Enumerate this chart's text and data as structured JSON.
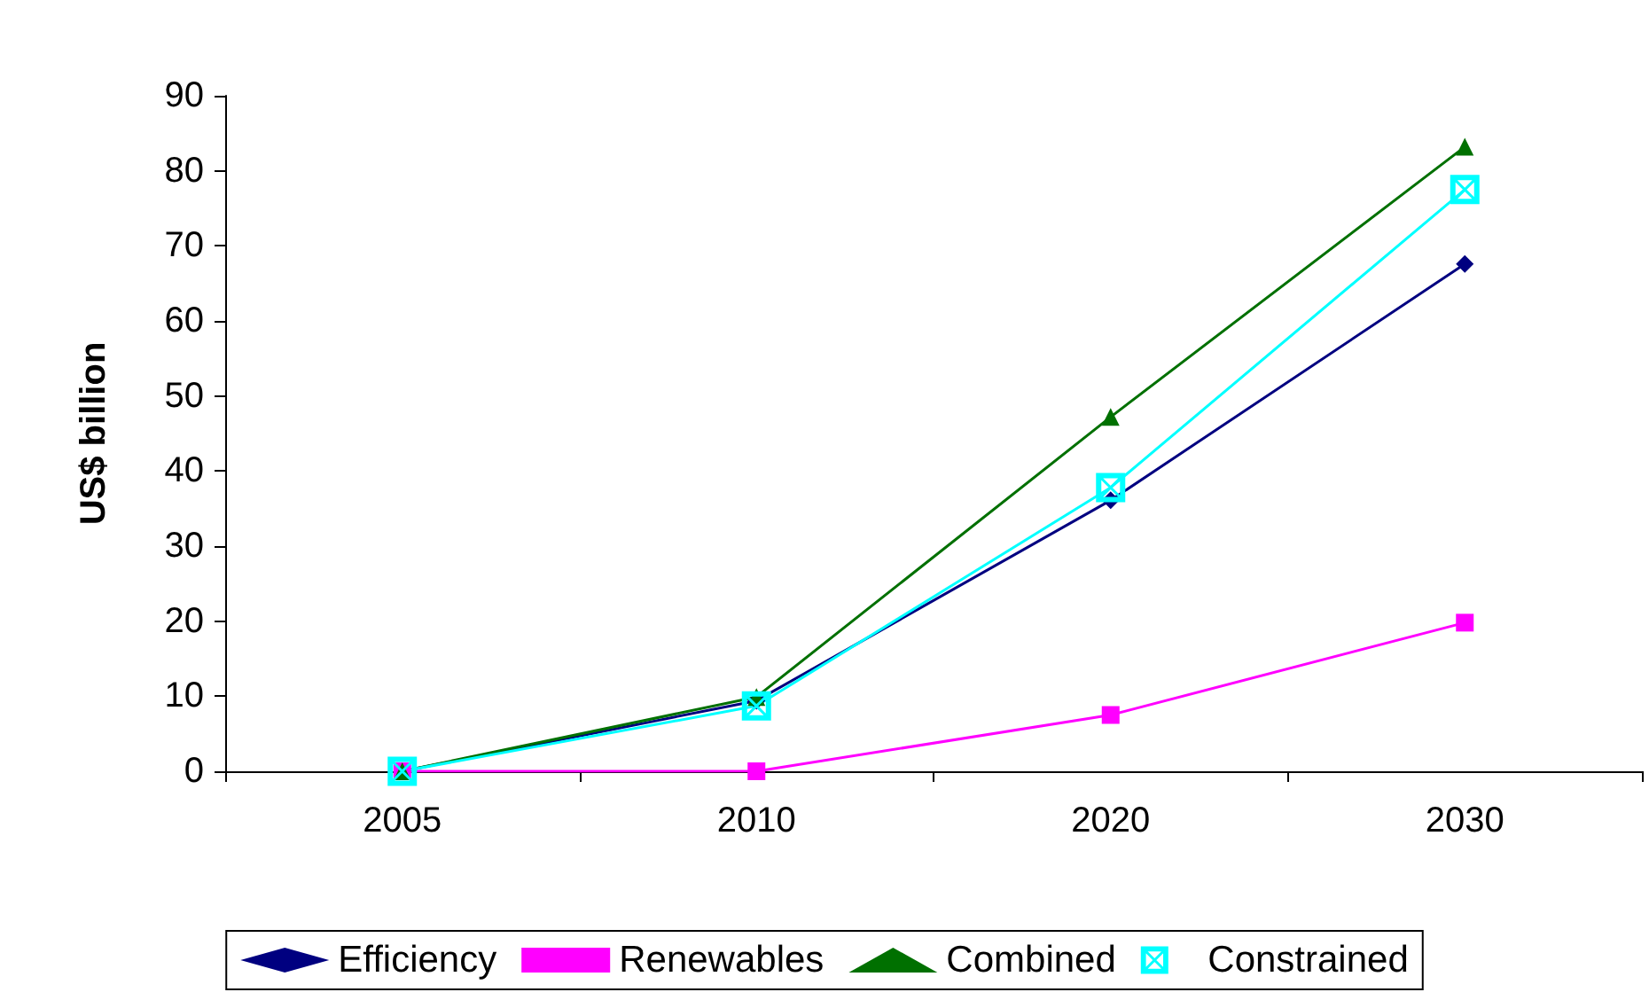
{
  "chart_data": {
    "type": "line",
    "ylabel": "US$ billion",
    "categories": [
      "2005",
      "2010",
      "2020",
      "2030"
    ],
    "series": [
      {
        "name": "Efficiency",
        "color": "#000080",
        "marker": "diamond",
        "values": [
          0,
          9.4,
          36.1,
          67.6
        ]
      },
      {
        "name": "Renewables",
        "color": "#ff00ff",
        "marker": "square",
        "values": [
          0,
          0,
          7.5,
          19.8
        ]
      },
      {
        "name": "Combined",
        "color": "#007000",
        "marker": "triangle",
        "values": [
          0,
          9.9,
          47.2,
          83.2
        ]
      },
      {
        "name": "Constrained",
        "color": "#00ffff",
        "marker": "cross",
        "values": [
          0,
          8.7,
          37.8,
          77.5
        ]
      }
    ],
    "ylim": [
      0,
      90
    ],
    "yticks": [
      0,
      10,
      20,
      30,
      40,
      50,
      60,
      70,
      80,
      90
    ],
    "grid": false,
    "legend": "bottom",
    "line_style": "solid"
  }
}
